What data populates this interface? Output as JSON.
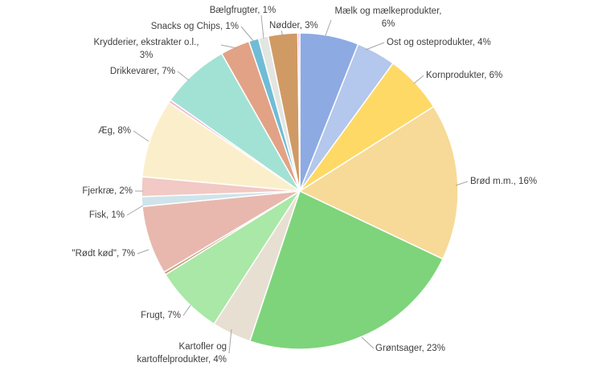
{
  "chart_data": {
    "type": "pie",
    "categories": [
      "Mælk og mælkeprodukter,\n6%",
      "Ost og osteprodukter, 4%",
      "Kornprodukter, 6%",
      "Brød m.m., 16%",
      "Grøntsager, 23%",
      "Kartofler og\nkartoffelprodukter, 4%",
      "Frugt, 7%",
      null,
      "\"Rødt kød\", 7%",
      "Fisk, 1%",
      "Fjerkræ, 2%",
      "Æg, 8%",
      null,
      "Drikkevarer, 7%",
      "Krydderier, ekstrakter o.l.,\n3%",
      "Snacks og Chips, 1%",
      "Bælgfrugter, 1%",
      "Nødder, 3%",
      null
    ],
    "values": [
      6,
      4,
      6,
      16,
      23,
      4,
      7,
      0.3,
      7,
      1,
      2,
      8,
      0.3,
      7,
      3,
      1,
      1,
      3,
      0.2
    ],
    "colors": [
      "#8eaae3",
      "#b4c7ec",
      "#ffd966",
      "#f7da97",
      "#7ed47a",
      "#e7dfd1",
      "#a9e8a6",
      "#c9a07a",
      "#e8b8ae",
      "#cfe3ea",
      "#f2c9c4",
      "#fbefcb",
      "#f4b6d8",
      "#a2e2d4",
      "#e2a285",
      "#70bcd6",
      "#e3e6e0",
      "#d09a64",
      "#f4a7c8"
    ]
  }
}
